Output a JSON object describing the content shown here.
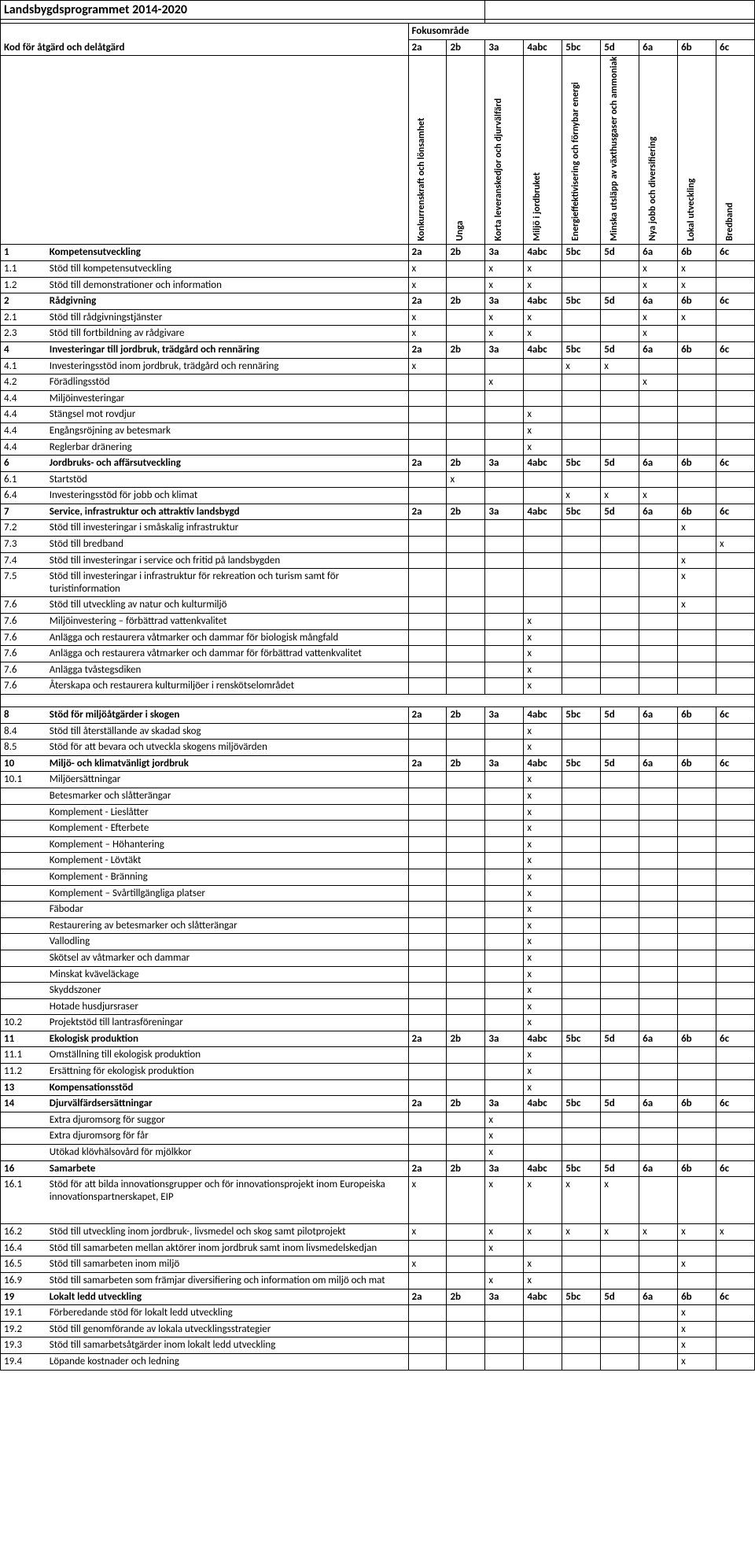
{
  "title": "Landsbygdsprogrammet 2014-2020",
  "label_kod": "Kod för åtgärd och delåtgärd",
  "label_fokus": "Fokusområde",
  "focus_codes": [
    "2a",
    "2b",
    "3a",
    "4abc",
    "5bc",
    "5d",
    "6a",
    "6b",
    "6c"
  ],
  "focus_names": [
    "Konkurrenskraft och lönsamhet",
    "Unga",
    "Korta leveranskedjor och djurvälfärd",
    "Miljö i jordbruket",
    "Energieffektivisering och förnybar energi",
    "Minska utsläpp av växthusgaser och ammoniak",
    "Nya jobb och diversifiering",
    "Lokal utveckling",
    "Bredband"
  ],
  "rows": [
    {
      "code": "1",
      "desc": "Kompetensutveckling",
      "header": true
    },
    {
      "code": "1.1",
      "desc": "Stöd till kompetensutveckling",
      "vals": [
        "x",
        "",
        "x",
        "x",
        "",
        "",
        "x",
        "x",
        ""
      ]
    },
    {
      "code": "1.2",
      "desc": "Stöd till demonstrationer och information",
      "vals": [
        "x",
        "",
        "x",
        "x",
        "",
        "",
        "x",
        "x",
        ""
      ]
    },
    {
      "code": "2",
      "desc": "Rådgivning",
      "header": true
    },
    {
      "code": "2.1",
      "desc": "Stöd till rådgivningstjänster",
      "vals": [
        "x",
        "",
        "x",
        "x",
        "",
        "",
        "x",
        "x",
        ""
      ]
    },
    {
      "code": "2.3",
      "desc": "Stöd till fortbildning av rådgivare",
      "vals": [
        "x",
        "",
        "x",
        "x",
        "",
        "",
        "x",
        "",
        ""
      ]
    },
    {
      "code": "4",
      "desc": "Investeringar till jordbruk, trädgård och rennäring",
      "header": true
    },
    {
      "code": "4.1",
      "desc": "Investeringsstöd inom jordbruk, trädgård och rennäring",
      "vals": [
        "x",
        "",
        "",
        "",
        "x",
        "x",
        "",
        "",
        ""
      ]
    },
    {
      "code": "4.2",
      "desc": "Förädlingsstöd",
      "vals": [
        "",
        "",
        "x",
        "",
        "",
        "",
        "x",
        "",
        ""
      ]
    },
    {
      "code": "4.4",
      "desc": "Miljöinvesteringar",
      "vals": [
        "",
        "",
        "",
        "",
        "",
        "",
        "",
        "",
        ""
      ]
    },
    {
      "code": "4.4",
      "desc": "Stängsel mot rovdjur",
      "vals": [
        "",
        "",
        "",
        "x",
        "",
        "",
        "",
        "",
        ""
      ]
    },
    {
      "code": "4.4",
      "desc": "Engångsröjning av betesmark",
      "vals": [
        "",
        "",
        "",
        "x",
        "",
        "",
        "",
        "",
        ""
      ]
    },
    {
      "code": "4.4",
      "desc": "Reglerbar dränering",
      "vals": [
        "",
        "",
        "",
        "x",
        "",
        "",
        "",
        "",
        ""
      ]
    },
    {
      "code": "6",
      "desc": "Jordbruks- och affärsutveckling",
      "header": true
    },
    {
      "code": "6.1",
      "desc": "Startstöd",
      "vals": [
        "",
        "x",
        "",
        "",
        "",
        "",
        "",
        "",
        ""
      ]
    },
    {
      "code": "6.4",
      "desc": "Investeringsstöd för jobb och klimat",
      "vals": [
        "",
        "",
        "",
        "",
        "x",
        "x",
        "x",
        "",
        ""
      ]
    },
    {
      "code": "7",
      "desc": "Service, infrastruktur och attraktiv landsbygd",
      "header": true
    },
    {
      "code": "7.2",
      "desc": "Stöd till investeringar i småskalig infrastruktur",
      "vals": [
        "",
        "",
        "",
        "",
        "",
        "",
        "",
        "x",
        ""
      ]
    },
    {
      "code": "7.3",
      "desc": "Stöd till bredband",
      "vals": [
        "",
        "",
        "",
        "",
        "",
        "",
        "",
        "",
        "x"
      ]
    },
    {
      "code": "7.4",
      "desc": "Stöd till investeringar i service och fritid på landsbygden",
      "vals": [
        "",
        "",
        "",
        "",
        "",
        "",
        "",
        "x",
        ""
      ]
    },
    {
      "code": "7.5",
      "desc": "Stöd till investeringar i infrastruktur för rekreation och turism samt för turistinformation",
      "vals": [
        "",
        "",
        "",
        "",
        "",
        "",
        "",
        "x",
        ""
      ]
    },
    {
      "code": "7.6",
      "desc": "Stöd till utveckling av natur och kulturmiljö",
      "vals": [
        "",
        "",
        "",
        "",
        "",
        "",
        "",
        "x",
        ""
      ]
    },
    {
      "code": "7.6",
      "desc": "Miljöinvestering – förbättrad vattenkvalitet",
      "vals": [
        "",
        "",
        "",
        "x",
        "",
        "",
        "",
        "",
        ""
      ]
    },
    {
      "code": "7.6",
      "desc": "Anlägga och restaurera våtmarker och dammar för biologisk mångfald",
      "vals": [
        "",
        "",
        "",
        "x",
        "",
        "",
        "",
        "",
        ""
      ]
    },
    {
      "code": "7.6",
      "desc": "Anlägga och restaurera våtmarker och dammar för förbättrad vattenkvalitet",
      "vals": [
        "",
        "",
        "",
        "x",
        "",
        "",
        "",
        "",
        ""
      ]
    },
    {
      "code": "7.6",
      "desc": "Anlägga tvåstegsdiken",
      "vals": [
        "",
        "",
        "",
        "x",
        "",
        "",
        "",
        "",
        ""
      ]
    },
    {
      "code": "7.6",
      "desc": "Återskapa och restaurera kulturmiljöer i renskötselområdet",
      "vals": [
        "",
        "",
        "",
        "x",
        "",
        "",
        "",
        "",
        ""
      ]
    },
    {
      "spacer": true
    },
    {
      "code": "8",
      "desc": "Stöd för miljöåtgärder i skogen",
      "header": true
    },
    {
      "code": "8.4",
      "desc": "Stöd till återställande av skadad skog",
      "vals": [
        "",
        "",
        "",
        "x",
        "",
        "",
        "",
        "",
        ""
      ]
    },
    {
      "code": "8.5",
      "desc": "Stöd för att bevara och utveckla skogens miljövärden",
      "vals": [
        "",
        "",
        "",
        "x",
        "",
        "",
        "",
        "",
        ""
      ]
    },
    {
      "code": "10",
      "desc": "Miljö- och klimatvänligt jordbruk",
      "header": true
    },
    {
      "code": "10.1",
      "desc": "Miljöersättningar",
      "vals": [
        "",
        "",
        "",
        "x",
        "",
        "",
        "",
        "",
        ""
      ]
    },
    {
      "code": "",
      "desc": "Betesmarker och slåtterängar",
      "vals": [
        "",
        "",
        "",
        "x",
        "",
        "",
        "",
        "",
        ""
      ]
    },
    {
      "code": "",
      "desc": "Komplement - Lieslåtter",
      "vals": [
        "",
        "",
        "",
        "x",
        "",
        "",
        "",
        "",
        ""
      ]
    },
    {
      "code": "",
      "desc": "Komplement - Efterbete",
      "vals": [
        "",
        "",
        "",
        "x",
        "",
        "",
        "",
        "",
        ""
      ]
    },
    {
      "code": "",
      "desc": "Komplement – Höhantering",
      "vals": [
        "",
        "",
        "",
        "x",
        "",
        "",
        "",
        "",
        ""
      ]
    },
    {
      "code": "",
      "desc": "Komplement - Lövtäkt",
      "vals": [
        "",
        "",
        "",
        "x",
        "",
        "",
        "",
        "",
        ""
      ]
    },
    {
      "code": "",
      "desc": "Komplement - Bränning",
      "vals": [
        "",
        "",
        "",
        "x",
        "",
        "",
        "",
        "",
        ""
      ]
    },
    {
      "code": "",
      "desc": "Komplement – Svårtillgängliga platser",
      "vals": [
        "",
        "",
        "",
        "x",
        "",
        "",
        "",
        "",
        ""
      ]
    },
    {
      "code": "",
      "desc": "Fäbodar",
      "vals": [
        "",
        "",
        "",
        "x",
        "",
        "",
        "",
        "",
        ""
      ]
    },
    {
      "code": "",
      "desc": "Restaurering av betesmarker och slåtterängar",
      "vals": [
        "",
        "",
        "",
        "x",
        "",
        "",
        "",
        "",
        ""
      ]
    },
    {
      "code": "",
      "desc": "Vallodling",
      "vals": [
        "",
        "",
        "",
        "x",
        "",
        "",
        "",
        "",
        ""
      ]
    },
    {
      "code": "",
      "desc": "Skötsel av våtmarker och dammar",
      "vals": [
        "",
        "",
        "",
        "x",
        "",
        "",
        "",
        "",
        ""
      ]
    },
    {
      "code": "",
      "desc": "Minskat kväveläckage",
      "vals": [
        "",
        "",
        "",
        "x",
        "",
        "",
        "",
        "",
        ""
      ]
    },
    {
      "code": "",
      "desc": "Skyddszoner",
      "vals": [
        "",
        "",
        "",
        "x",
        "",
        "",
        "",
        "",
        ""
      ]
    },
    {
      "code": "",
      "desc": "Hotade husdjursraser",
      "vals": [
        "",
        "",
        "",
        "x",
        "",
        "",
        "",
        "",
        ""
      ]
    },
    {
      "code": "10.2",
      "desc": "Projektstöd till lantrasföreningar",
      "vals": [
        "",
        "",
        "",
        "x",
        "",
        "",
        "",
        "",
        ""
      ]
    },
    {
      "code": "11",
      "desc": "Ekologisk produktion",
      "header": true
    },
    {
      "code": "11.1",
      "desc": "Omställning till ekologisk produktion",
      "vals": [
        "",
        "",
        "",
        "x",
        "",
        "",
        "",
        "",
        ""
      ]
    },
    {
      "code": "11.2",
      "desc": "Ersättning för ekologisk produktion",
      "vals": [
        "",
        "",
        "",
        "x",
        "",
        "",
        "",
        "",
        ""
      ]
    },
    {
      "code": "13",
      "desc": "Kompensationsstöd",
      "bold": true,
      "vals": [
        "",
        "",
        "",
        "x",
        "",
        "",
        "",
        "",
        ""
      ]
    },
    {
      "code": "14",
      "desc": "Djurvälfärdsersättningar",
      "header": true
    },
    {
      "code": "",
      "desc": "Extra djuromsorg för suggor",
      "vals": [
        "",
        "",
        "x",
        "",
        "",
        "",
        "",
        "",
        ""
      ]
    },
    {
      "code": "",
      "desc": "Extra djuromsorg för får",
      "vals": [
        "",
        "",
        "x",
        "",
        "",
        "",
        "",
        "",
        ""
      ]
    },
    {
      "code": "",
      "desc": "Utökad klövhälsovård för mjölkkor",
      "vals": [
        "",
        "",
        "x",
        "",
        "",
        "",
        "",
        "",
        ""
      ]
    },
    {
      "code": "16",
      "desc": "Samarbete",
      "header": true
    },
    {
      "code": "16.1",
      "desc": "Stöd för att bilda innovationsgrupper och för innovationsprojekt inom Europeiska innovationspartnerskapet, EIP",
      "vals": [
        "x",
        "",
        "x",
        "x",
        "x",
        "x",
        "",
        "",
        ""
      ],
      "tall": true
    },
    {
      "code": "16.2",
      "desc": "Stöd till utveckling inom jordbruk-, livsmedel och skog samt pilotprojekt",
      "vals": [
        "x",
        "",
        "x",
        "x",
        "x",
        "x",
        "x",
        "x",
        "x"
      ]
    },
    {
      "code": "16.4",
      "desc": "Stöd till samarbeten mellan aktörer inom jordbruk samt inom livsmedelskedjan",
      "vals": [
        "",
        "",
        "x",
        "",
        "",
        "",
        "",
        "",
        ""
      ]
    },
    {
      "code": "16.5",
      "desc": "Stöd till samarbeten inom miljö",
      "vals": [
        "x",
        "",
        "",
        "x",
        "",
        "",
        "",
        "x",
        ""
      ]
    },
    {
      "code": "16.9",
      "desc": "Stöd till samarbeten som främjar diversifiering och information om miljö och mat",
      "vals": [
        "",
        "",
        "x",
        "x",
        "",
        "",
        "",
        "",
        ""
      ]
    },
    {
      "code": "19",
      "desc": "Lokalt ledd utveckling",
      "header": true
    },
    {
      "code": "19.1",
      "desc": "Förberedande stöd för lokalt ledd utveckling",
      "vals": [
        "",
        "",
        "",
        "",
        "",
        "",
        "",
        "x",
        ""
      ]
    },
    {
      "code": "19.2",
      "desc": "Stöd till genomförande av lokala utvecklingsstrategier",
      "vals": [
        "",
        "",
        "",
        "",
        "",
        "",
        "",
        "x",
        ""
      ]
    },
    {
      "code": "19.3",
      "desc": "Stöd till samarbetsåtgärder inom lokalt ledd utveckling",
      "vals": [
        "",
        "",
        "",
        "",
        "",
        "",
        "",
        "x",
        ""
      ]
    },
    {
      "code": "19.4",
      "desc": "Löpande kostnader och ledning",
      "vals": [
        "",
        "",
        "",
        "",
        "",
        "",
        "",
        "x",
        ""
      ]
    }
  ]
}
